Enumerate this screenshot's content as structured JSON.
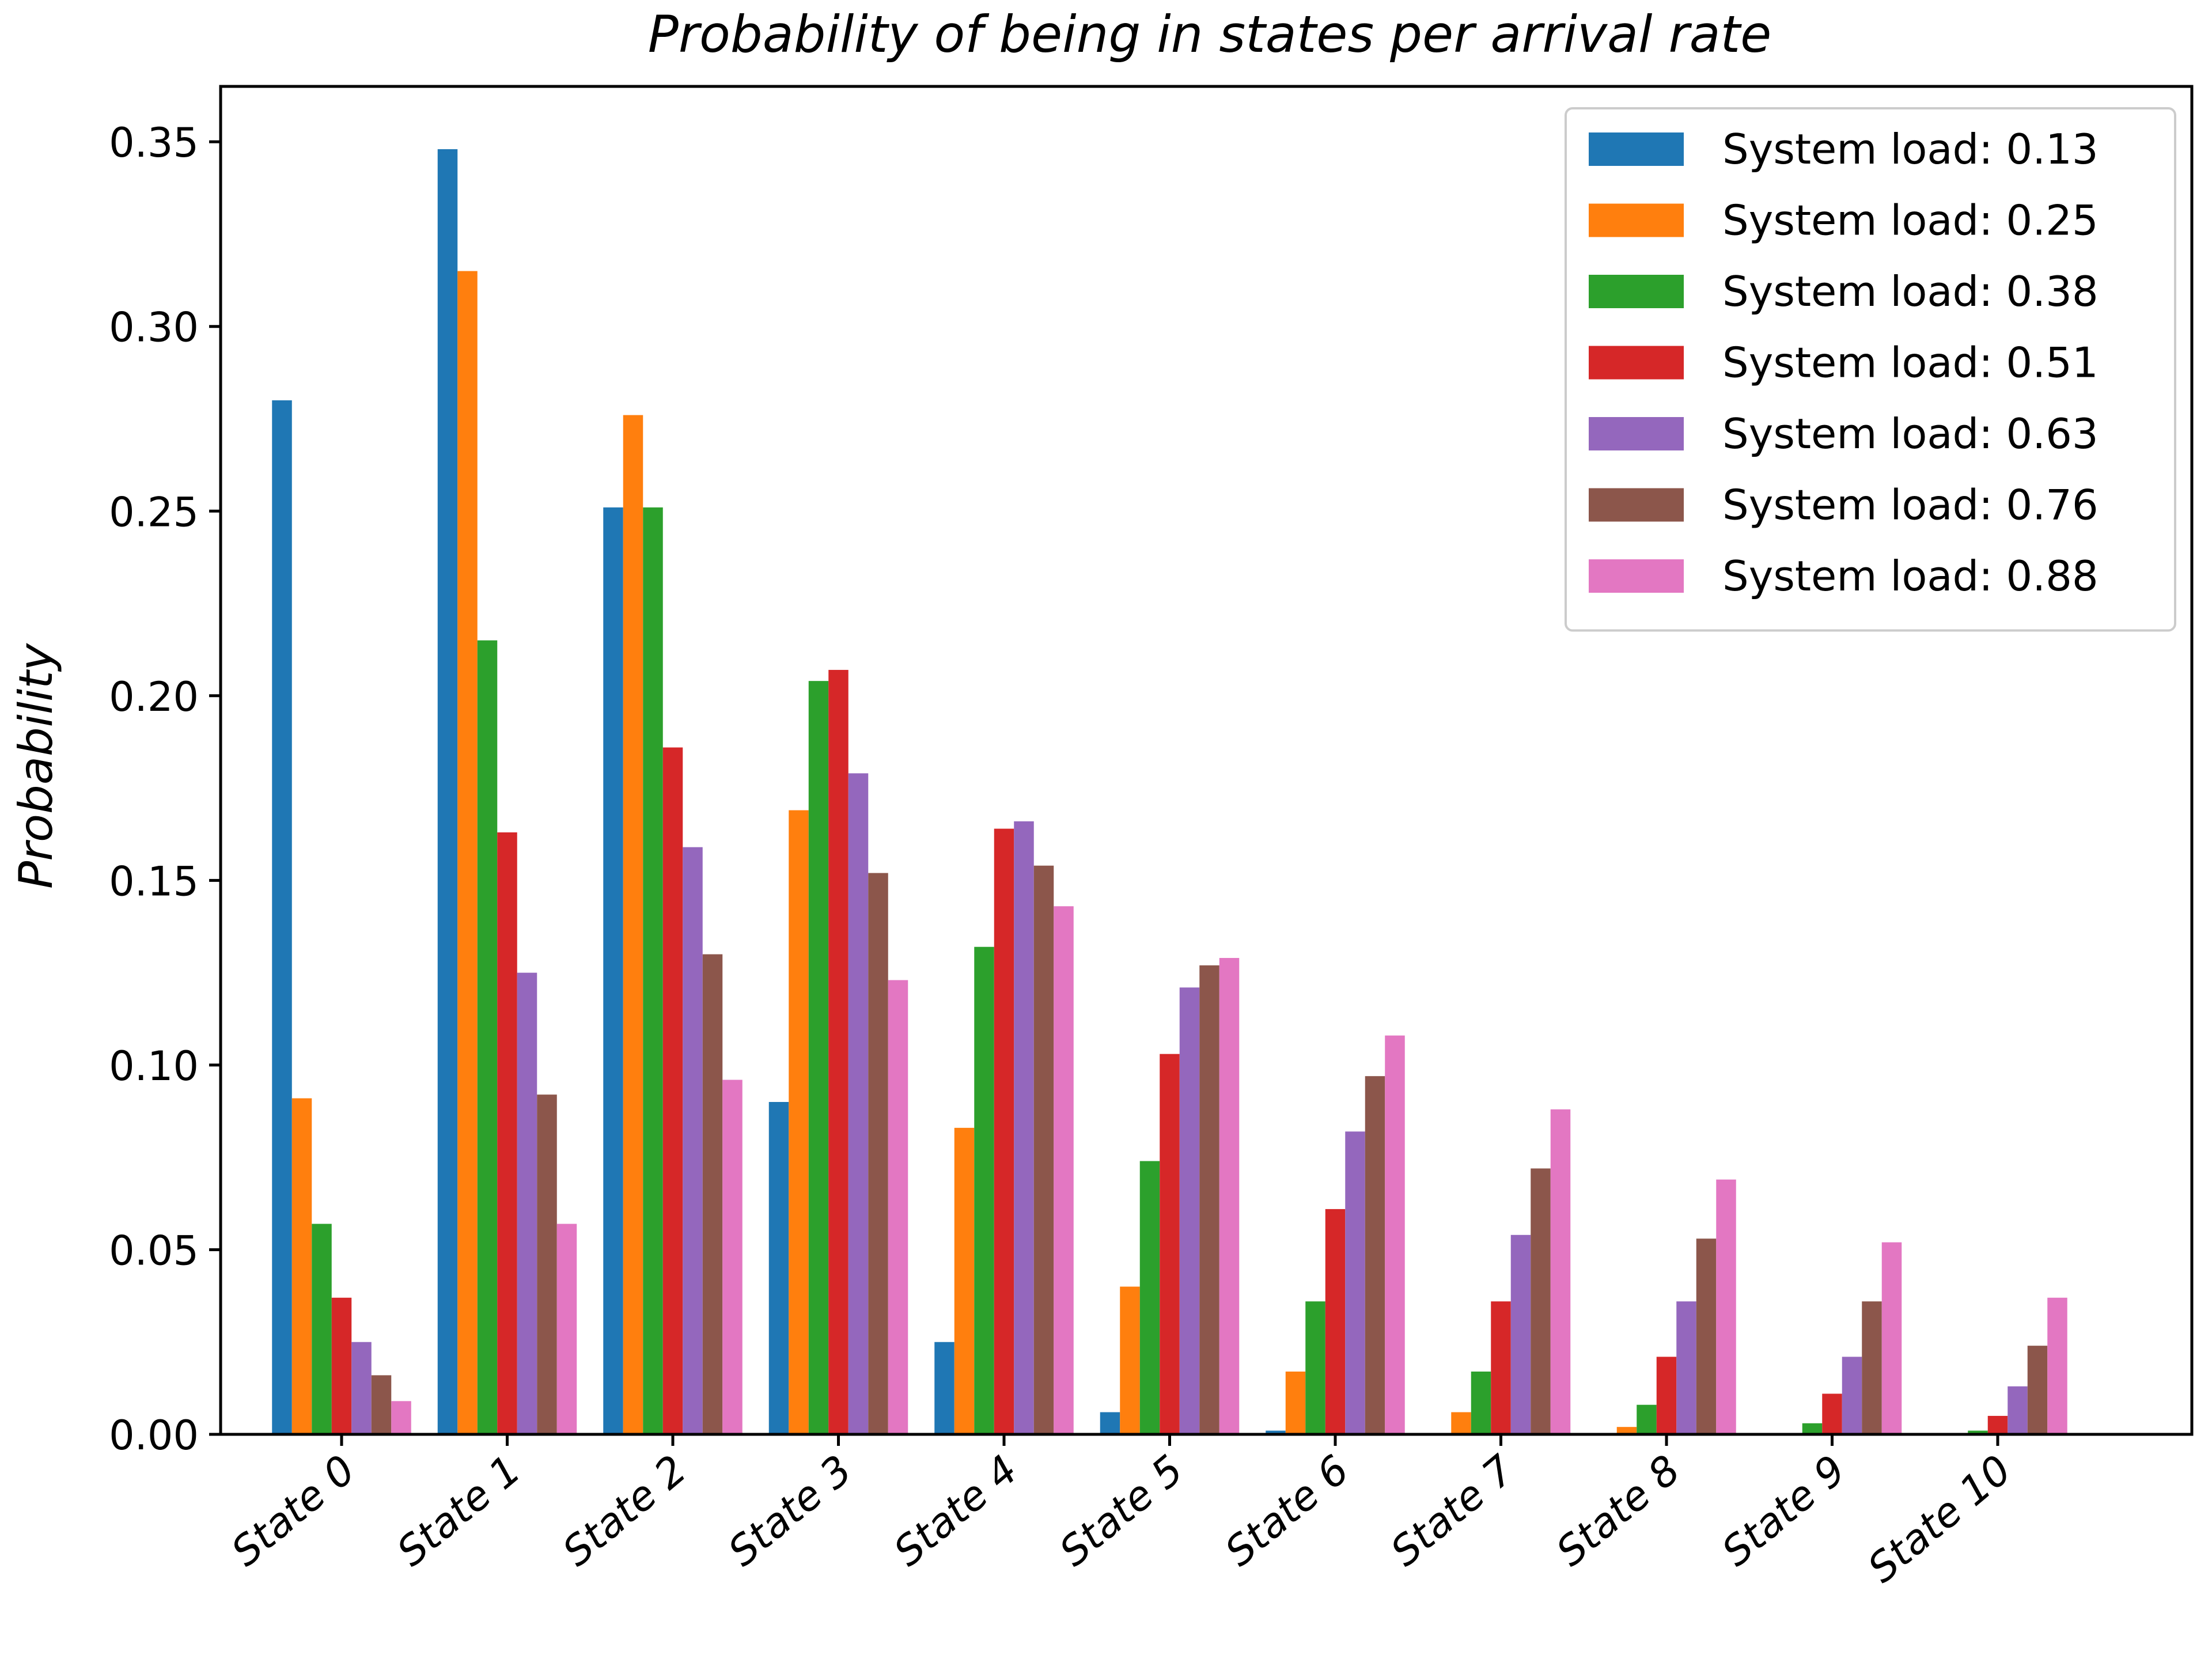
{
  "chart_data": {
    "type": "bar",
    "title": "Probability of being in states per arrival rate",
    "xlabel": "",
    "ylabel": "Probability",
    "ylim": [
      0,
      0.365
    ],
    "yticks": [
      "0.00",
      "0.05",
      "0.10",
      "0.15",
      "0.20",
      "0.25",
      "0.30",
      "0.35"
    ],
    "grid": false,
    "legend_position": "top-right",
    "categories": [
      "State 0",
      "State 1",
      "State 2",
      "State 3",
      "State 4",
      "State 5",
      "State 6",
      "State 7",
      "State 8",
      "State 9",
      "State 10"
    ],
    "series": [
      {
        "name": "System load: 0.13",
        "color": "#1f77b4",
        "values": [
          0.28,
          0.348,
          0.251,
          0.09,
          0.025,
          0.006,
          0.001,
          0.0,
          0.0,
          0.0,
          0.0
        ]
      },
      {
        "name": "System load: 0.25",
        "color": "#ff7f0e",
        "values": [
          0.091,
          0.315,
          0.276,
          0.169,
          0.083,
          0.04,
          0.017,
          0.006,
          0.002,
          0.0,
          0.0
        ]
      },
      {
        "name": "System load: 0.38",
        "color": "#2ca02c",
        "values": [
          0.057,
          0.215,
          0.251,
          0.204,
          0.132,
          0.074,
          0.036,
          0.017,
          0.008,
          0.003,
          0.001
        ]
      },
      {
        "name": "System load: 0.51",
        "color": "#d62728",
        "values": [
          0.037,
          0.163,
          0.186,
          0.207,
          0.164,
          0.103,
          0.061,
          0.036,
          0.021,
          0.011,
          0.005
        ]
      },
      {
        "name": "System load: 0.63",
        "color": "#9467bd",
        "values": [
          0.025,
          0.125,
          0.159,
          0.179,
          0.166,
          0.121,
          0.082,
          0.054,
          0.036,
          0.021,
          0.013
        ]
      },
      {
        "name": "System load: 0.76",
        "color": "#8c564b",
        "values": [
          0.016,
          0.092,
          0.13,
          0.152,
          0.154,
          0.127,
          0.097,
          0.072,
          0.053,
          0.036,
          0.024
        ]
      },
      {
        "name": "System load: 0.88",
        "color": "#e377c2",
        "values": [
          0.009,
          0.057,
          0.096,
          0.123,
          0.143,
          0.129,
          0.108,
          0.088,
          0.069,
          0.052,
          0.037
        ]
      }
    ]
  }
}
